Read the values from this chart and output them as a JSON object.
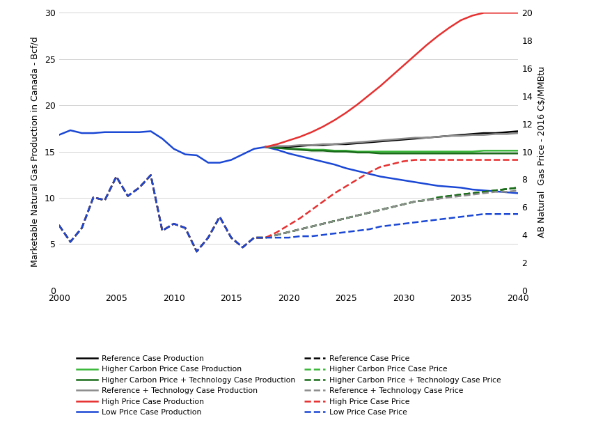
{
  "ylabel_left": "Marketable Natural Gas Production in Canada - Bcf/d",
  "ylabel_right": "AB Natural  Gas Price - 2016 C$/MMBtu",
  "xlim": [
    2000,
    2040
  ],
  "ylim_left": [
    0,
    30
  ],
  "ylim_right": [
    0,
    20
  ],
  "yticks_left": [
    0,
    5,
    10,
    15,
    20,
    25,
    30
  ],
  "yticks_right": [
    0,
    2,
    4,
    6,
    8,
    10,
    12,
    14,
    16,
    18,
    20
  ],
  "xticks": [
    2000,
    2005,
    2010,
    2015,
    2020,
    2025,
    2030,
    2035,
    2040
  ],
  "years_hist": [
    2000,
    2001,
    2002,
    2003,
    2004,
    2005,
    2006,
    2007,
    2008,
    2009,
    2010,
    2011,
    2012,
    2013,
    2014,
    2015,
    2016,
    2017,
    2018
  ],
  "years_proj": [
    2018,
    2019,
    2020,
    2021,
    2022,
    2023,
    2024,
    2025,
    2026,
    2027,
    2028,
    2029,
    2030,
    2031,
    2032,
    2033,
    2034,
    2035,
    2036,
    2037,
    2038,
    2039,
    2040
  ],
  "prod_blue_hist": [
    16.8,
    17.3,
    17.0,
    17.0,
    17.1,
    17.1,
    17.1,
    17.1,
    17.2,
    16.4,
    15.3,
    14.7,
    14.6,
    13.8,
    13.8,
    14.1,
    14.7,
    15.3,
    15.5
  ],
  "prod_blue_proj": [
    15.5,
    15.2,
    14.8,
    14.5,
    14.2,
    13.9,
    13.6,
    13.2,
    12.9,
    12.6,
    12.3,
    12.1,
    11.9,
    11.7,
    11.5,
    11.3,
    11.2,
    11.1,
    10.9,
    10.8,
    10.7,
    10.6,
    10.5
  ],
  "prod_black_proj": [
    15.5,
    15.5,
    15.5,
    15.6,
    15.7,
    15.7,
    15.8,
    15.8,
    15.9,
    16.0,
    16.1,
    16.2,
    16.3,
    16.4,
    16.5,
    16.6,
    16.7,
    16.8,
    16.9,
    17.0,
    17.0,
    17.1,
    17.2
  ],
  "prod_green_bright_proj": [
    15.5,
    15.4,
    15.3,
    15.3,
    15.2,
    15.2,
    15.1,
    15.1,
    15.0,
    15.0,
    15.0,
    15.0,
    15.0,
    15.0,
    15.0,
    15.0,
    15.0,
    15.0,
    15.0,
    15.1,
    15.1,
    15.1,
    15.1
  ],
  "prod_green_dark_proj": [
    15.5,
    15.4,
    15.3,
    15.2,
    15.1,
    15.1,
    15.0,
    15.0,
    14.9,
    14.9,
    14.8,
    14.8,
    14.8,
    14.8,
    14.8,
    14.8,
    14.8,
    14.8,
    14.8,
    14.8,
    14.8,
    14.8,
    14.8
  ],
  "prod_gray_proj": [
    15.5,
    15.6,
    15.6,
    15.7,
    15.7,
    15.8,
    15.8,
    15.9,
    16.0,
    16.1,
    16.2,
    16.3,
    16.4,
    16.5,
    16.5,
    16.6,
    16.7,
    16.7,
    16.8,
    16.8,
    16.9,
    16.9,
    17.0
  ],
  "prod_red_proj": [
    15.5,
    15.8,
    16.2,
    16.6,
    17.1,
    17.7,
    18.4,
    19.2,
    20.1,
    21.1,
    22.1,
    23.2,
    24.3,
    25.4,
    26.5,
    27.5,
    28.4,
    29.2,
    29.7,
    30.0,
    30.0,
    30.0,
    30.0
  ],
  "price_hist": [
    4.7,
    3.5,
    4.5,
    6.7,
    6.5,
    8.2,
    6.8,
    7.4,
    8.3,
    4.3,
    4.8,
    4.5,
    2.8,
    3.8,
    5.3,
    3.8,
    3.1,
    3.8,
    3.8
  ],
  "price_proj_black": [
    3.8,
    4.0,
    4.2,
    4.4,
    4.6,
    4.8,
    5.0,
    5.2,
    5.4,
    5.6,
    5.8,
    6.0,
    6.2,
    6.4,
    6.5,
    6.6,
    6.8,
    6.9,
    7.0,
    7.1,
    7.2,
    7.3,
    7.4
  ],
  "price_proj_green_bright": [
    3.8,
    4.0,
    4.2,
    4.4,
    4.6,
    4.8,
    5.0,
    5.2,
    5.4,
    5.6,
    5.8,
    6.0,
    6.2,
    6.4,
    6.5,
    6.7,
    6.8,
    6.9,
    7.0,
    7.1,
    7.2,
    7.3,
    7.4
  ],
  "price_proj_green_dark": [
    3.8,
    4.0,
    4.2,
    4.4,
    4.6,
    4.8,
    5.0,
    5.2,
    5.4,
    5.6,
    5.8,
    6.0,
    6.2,
    6.4,
    6.5,
    6.7,
    6.8,
    6.9,
    7.0,
    7.1,
    7.2,
    7.3,
    7.4
  ],
  "price_proj_gray": [
    3.8,
    4.0,
    4.2,
    4.4,
    4.6,
    4.8,
    5.0,
    5.2,
    5.4,
    5.6,
    5.8,
    6.0,
    6.2,
    6.4,
    6.5,
    6.6,
    6.7,
    6.8,
    6.9,
    7.0,
    7.1,
    7.1,
    7.2
  ],
  "price_proj_red": [
    3.8,
    4.2,
    4.7,
    5.2,
    5.8,
    6.4,
    7.0,
    7.5,
    8.0,
    8.5,
    8.9,
    9.1,
    9.3,
    9.4,
    9.4,
    9.4,
    9.4,
    9.4,
    9.4,
    9.4,
    9.4,
    9.4,
    9.4
  ],
  "price_proj_blue": [
    3.8,
    3.8,
    3.8,
    3.9,
    3.9,
    4.0,
    4.1,
    4.2,
    4.3,
    4.4,
    4.6,
    4.7,
    4.8,
    4.9,
    5.0,
    5.1,
    5.2,
    5.3,
    5.4,
    5.5,
    5.5,
    5.5,
    5.5
  ],
  "c_black": "#000000",
  "c_green_bright": "#3cb83c",
  "c_green_dark": "#1a6b1a",
  "c_gray": "#8c8c8c",
  "c_red": "#e63030",
  "c_blue": "#1a47d4",
  "lw": 1.8,
  "legend_rows": [
    [
      "Reference Case Production",
      "solid",
      "black",
      "Higher Carbon Price Case Production",
      "solid",
      "green_bright"
    ],
    [
      "Higher Carbon Price + Technology Case Production",
      "solid",
      "green_dark",
      "Reference + Technology Case Production",
      "solid",
      "gray"
    ],
    [
      "High Price Case Production",
      "solid",
      "red",
      "Low Price Case Production",
      "solid",
      "blue"
    ],
    [
      "Reference Case Price",
      "dashed",
      "black",
      "Higher Carbon Price Case Price",
      "dashed",
      "green_bright"
    ],
    [
      "Higher Carbon Price + Technology Case Price",
      "dashed",
      "green_dark",
      "Reference + Technology Case Price",
      "dashed",
      "gray"
    ],
    [
      "High Price Case Price",
      "dashed",
      "red",
      "Low Price Case Price",
      "dashed",
      "blue"
    ]
  ]
}
